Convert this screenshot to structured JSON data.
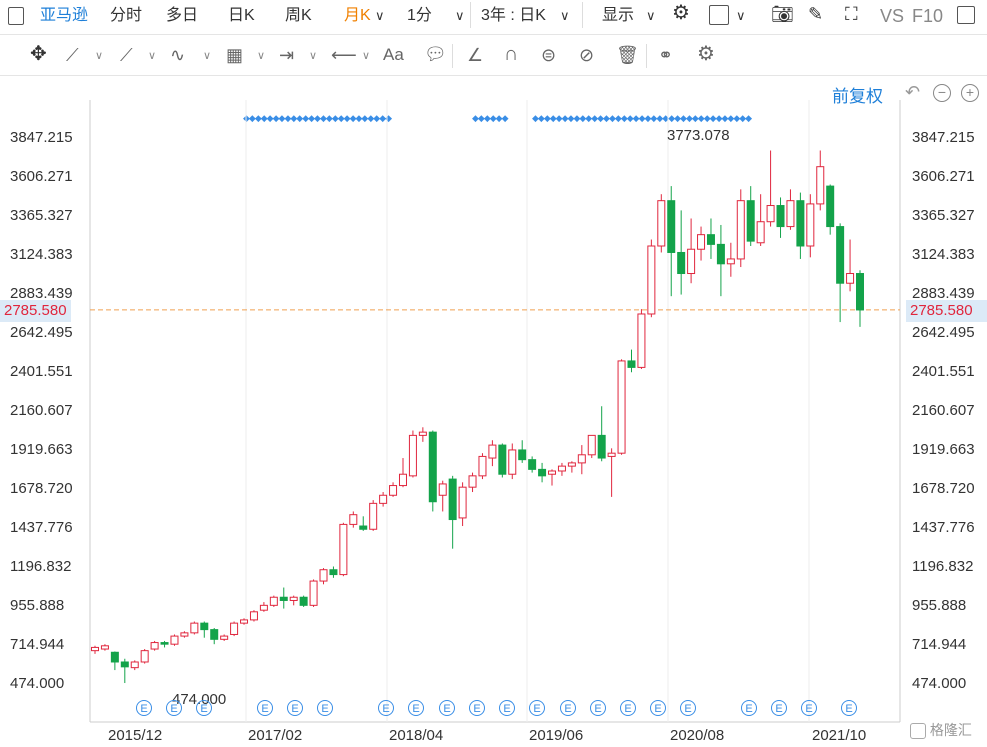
{
  "topbar": {
    "stock_name": "亚马逊",
    "tabs": [
      "分时",
      "多日",
      "日K",
      "周K",
      "月K",
      "1分"
    ],
    "active_tab": "月K",
    "range": "3年 : 日K",
    "display": "显示",
    "vs": "VS",
    "f10": "F10"
  },
  "toolbar2": {
    "text_tool": "Aa"
  },
  "chart_header": {
    "adjust_label": "前复权"
  },
  "chart_data": {
    "type": "candlestick",
    "title": "",
    "y_ticks": [
      "3847.215",
      "3606.271",
      "3365.327",
      "3124.383",
      "2883.439",
      "2642.495",
      "2401.551",
      "2160.607",
      "1919.663",
      "1678.720",
      "1437.776",
      "1196.832",
      "955.888",
      "714.944",
      "474.000"
    ],
    "x_ticks": [
      "2015/12",
      "2017/02",
      "2018/04",
      "2019/06",
      "2020/08",
      "2021/10"
    ],
    "ylim": [
      474.0,
      3847.215
    ],
    "current_price": "2785.580",
    "high_label": "3773.078",
    "low_label": "474.000",
    "candles": [
      [
        680,
        700,
        660,
        710
      ],
      [
        690,
        710,
        680,
        720
      ],
      [
        670,
        610,
        560,
        675
      ],
      [
        610,
        580,
        480,
        630
      ],
      [
        575,
        610,
        560,
        620
      ],
      [
        610,
        680,
        600,
        690
      ],
      [
        690,
        730,
        680,
        740
      ],
      [
        730,
        720,
        700,
        740
      ],
      [
        720,
        770,
        710,
        780
      ],
      [
        770,
        790,
        760,
        800
      ],
      [
        790,
        850,
        780,
        860
      ],
      [
        850,
        810,
        760,
        860
      ],
      [
        810,
        750,
        720,
        820
      ],
      [
        750,
        770,
        740,
        780
      ],
      [
        780,
        850,
        770,
        860
      ],
      [
        850,
        870,
        840,
        880
      ],
      [
        870,
        920,
        860,
        930
      ],
      [
        930,
        960,
        920,
        980
      ],
      [
        960,
        1010,
        950,
        1020
      ],
      [
        1010,
        990,
        940,
        1070
      ],
      [
        990,
        1010,
        960,
        1020
      ],
      [
        1010,
        960,
        950,
        1020
      ],
      [
        960,
        1110,
        950,
        1120
      ],
      [
        1110,
        1180,
        1090,
        1190
      ],
      [
        1180,
        1150,
        1130,
        1200
      ],
      [
        1150,
        1460,
        1140,
        1470
      ],
      [
        1460,
        1520,
        1440,
        1540
      ],
      [
        1450,
        1430,
        1420,
        1510
      ],
      [
        1430,
        1590,
        1420,
        1610
      ],
      [
        1590,
        1640,
        1570,
        1660
      ],
      [
        1640,
        1700,
        1630,
        1720
      ],
      [
        1700,
        1770,
        1690,
        1870
      ],
      [
        1760,
        2010,
        1750,
        2040
      ],
      [
        2010,
        2030,
        1970,
        2060
      ],
      [
        2030,
        1600,
        1540,
        2040
      ],
      [
        1640,
        1710,
        1540,
        1730
      ],
      [
        1740,
        1490,
        1310,
        1760
      ],
      [
        1500,
        1690,
        1450,
        1720
      ],
      [
        1690,
        1760,
        1660,
        1780
      ],
      [
        1760,
        1880,
        1740,
        1900
      ],
      [
        1870,
        1950,
        1820,
        1980
      ],
      [
        1950,
        1770,
        1750,
        1960
      ],
      [
        1770,
        1920,
        1740,
        1960
      ],
      [
        1920,
        1860,
        1840,
        1980
      ],
      [
        1860,
        1800,
        1780,
        1880
      ],
      [
        1800,
        1760,
        1720,
        1840
      ],
      [
        1770,
        1790,
        1700,
        1800
      ],
      [
        1790,
        1820,
        1760,
        1840
      ],
      [
        1820,
        1840,
        1780,
        1850
      ],
      [
        1840,
        1890,
        1770,
        1950
      ],
      [
        1890,
        2010,
        1870,
        2010
      ],
      [
        2010,
        1870,
        1850,
        2190
      ],
      [
        1880,
        1900,
        1630,
        1930
      ],
      [
        1900,
        2470,
        1890,
        2480
      ],
      [
        2470,
        2430,
        2400,
        2540
      ],
      [
        2430,
        2760,
        2420,
        2790
      ],
      [
        2760,
        3180,
        2740,
        3220
      ],
      [
        3180,
        3460,
        3140,
        3500
      ],
      [
        3460,
        3140,
        2870,
        3550
      ],
      [
        3140,
        3010,
        2880,
        3400
      ],
      [
        3010,
        3160,
        2950,
        3350
      ],
      [
        3160,
        3250,
        3090,
        3300
      ],
      [
        3250,
        3190,
        3100,
        3350
      ],
      [
        3190,
        3070,
        2870,
        3310
      ],
      [
        3070,
        3100,
        2990,
        3200
      ],
      [
        3100,
        3460,
        3050,
        3530
      ],
      [
        3460,
        3210,
        3180,
        3550
      ],
      [
        3200,
        3330,
        3180,
        3500
      ],
      [
        3330,
        3430,
        3300,
        3770
      ],
      [
        3430,
        3300,
        3230,
        3480
      ],
      [
        3300,
        3460,
        3280,
        3530
      ],
      [
        3460,
        3180,
        3100,
        3510
      ],
      [
        3180,
        3440,
        3110,
        3500
      ],
      [
        3440,
        3670,
        3400,
        3770
      ],
      [
        3550,
        3300,
        3250,
        3560
      ],
      [
        3300,
        2950,
        2710,
        3320
      ],
      [
        2950,
        3010,
        2900,
        3220
      ],
      [
        3010,
        2785,
        2680,
        3030
      ]
    ]
  },
  "events": {
    "badge_letter": "E",
    "watermark": "格隆汇"
  },
  "colors": {
    "up": "#e0263d",
    "down": "#13a34a",
    "accent": "#1e7fd8",
    "price_line": "#f0a050"
  }
}
